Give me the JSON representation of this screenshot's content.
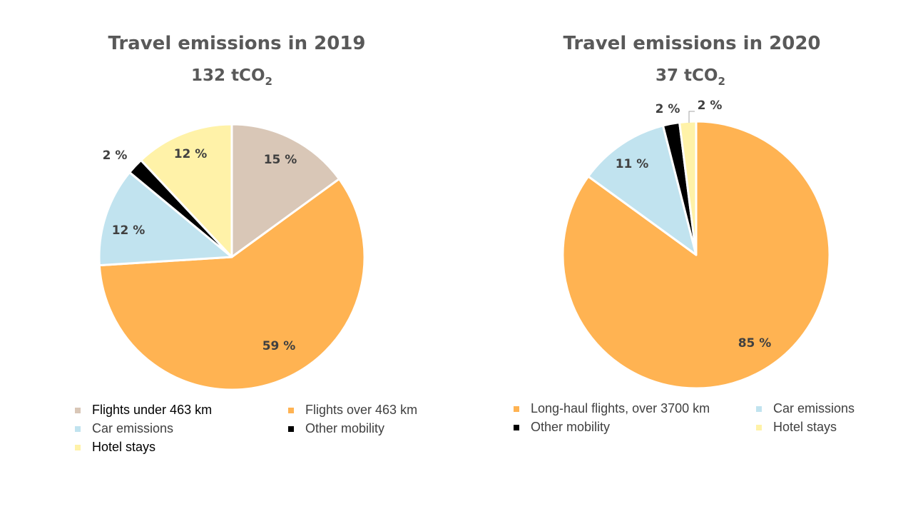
{
  "charts": [
    {
      "title": "Travel emissions in 2019",
      "total_value": "132 tCO",
      "total_sub": "2"
    },
    {
      "title": "Travel emissions in 2020",
      "total_value": "37 tCO",
      "total_sub": "2"
    }
  ],
  "chart_data": [
    {
      "type": "pie",
      "title": "Travel emissions in 2019",
      "subtitle": "132 tCO2",
      "slices": [
        {
          "label": "Flights under 463 km",
          "value": 15,
          "value_label": "15 %",
          "color": "#D9C7B7"
        },
        {
          "label": "Flights over 463 km",
          "value": 59,
          "value_label": "59 %",
          "color": "#FFB352"
        },
        {
          "label": "Car emissions",
          "value": 12,
          "value_label": "12 %",
          "color": "#C1E3EF"
        },
        {
          "label": "Other mobility",
          "value": 2,
          "value_label": "2 %",
          "color": "#000000"
        },
        {
          "label": "Hotel stays",
          "value": 12,
          "value_label": "12 %",
          "color": "#FFF2A8"
        }
      ],
      "start_angle": 0,
      "legend_position": "bottom"
    },
    {
      "type": "pie",
      "title": "Travel emissions in 2020",
      "subtitle": "37 tCO2",
      "slices": [
        {
          "label": "Long-haul flights, over 3700 km",
          "value": 85,
          "value_label": "85 %",
          "color": "#FFB352"
        },
        {
          "label": "Car emissions",
          "value": 11,
          "value_label": "11 %",
          "color": "#C1E3EF"
        },
        {
          "label": "Other mobility",
          "value": 2,
          "value_label": "2 %",
          "color": "#000000"
        },
        {
          "label": "Hotel stays",
          "value": 2,
          "value_label": "2 %",
          "color": "#FFF2A8"
        }
      ],
      "start_angle": 0,
      "legend_position": "bottom"
    }
  ]
}
